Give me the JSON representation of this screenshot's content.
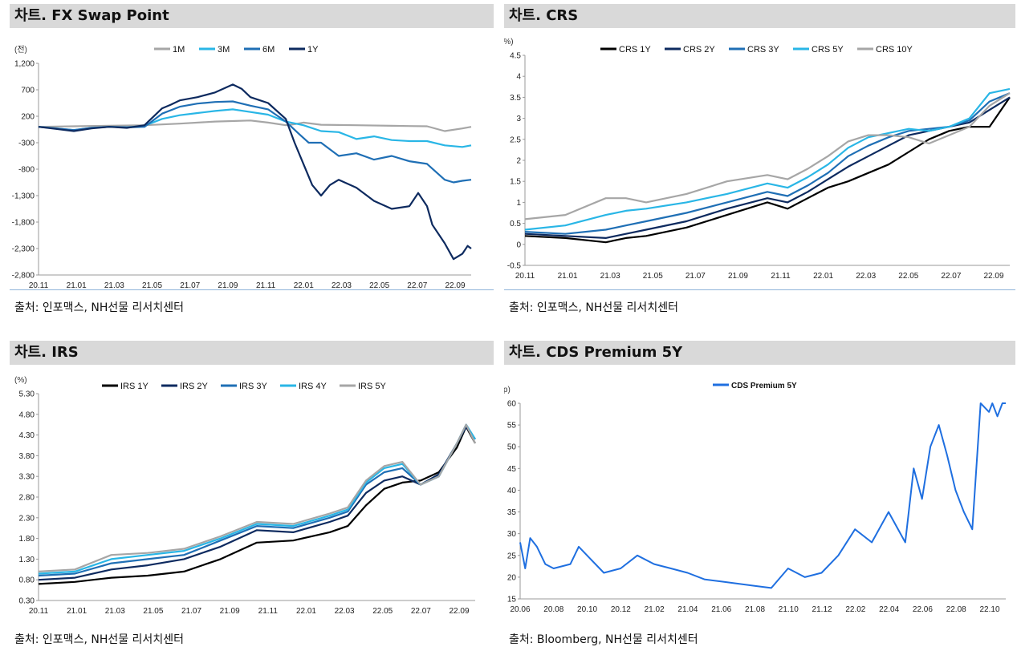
{
  "panels": [
    {
      "title": "차트. FX Swap Point",
      "source": "출처: 인포맥스, NH선물 리서치센터",
      "unit": "(전)",
      "chart_data": {
        "type": "line",
        "title": "",
        "ylim": [
          -2800,
          1200
        ],
        "yticks": [
          "1,200",
          "700",
          "200",
          "-300",
          "-800",
          "-1,300",
          "-1,800",
          "-2,300",
          "-2,800"
        ],
        "ytick_values": [
          1200,
          700,
          200,
          -300,
          -800,
          -1300,
          -1800,
          -2300,
          -2800
        ],
        "xticks": [
          "20.11",
          "21.01",
          "21.03",
          "21.05",
          "21.07",
          "21.09",
          "21.11",
          "22.01",
          "22.03",
          "22.05",
          "22.07",
          "22.09"
        ],
        "x_range": [
          0,
          24.5
        ],
        "legend_position": "top",
        "series": [
          {
            "name": "1M",
            "color": "#a6a6a6",
            "x": [
              0,
              2,
              4,
              6,
              8,
              10,
              12,
              13,
              14,
              14.5,
              15,
              16,
              18,
              20,
              22,
              23,
              24,
              24.5
            ],
            "y": [
              0,
              10,
              20,
              30,
              60,
              100,
              120,
              80,
              30,
              50,
              80,
              40,
              30,
              20,
              10,
              -80,
              -30,
              0
            ]
          },
          {
            "name": "3M",
            "color": "#29b6e6",
            "x": [
              0,
              1,
              2,
              3,
              4,
              5,
              6,
              7,
              8,
              9,
              10,
              11,
              12,
              13,
              14,
              15,
              16,
              17,
              18,
              19,
              20,
              21,
              22,
              23,
              24,
              24.5
            ],
            "y": [
              0,
              -30,
              -60,
              -20,
              0,
              -10,
              20,
              150,
              220,
              260,
              300,
              330,
              280,
              230,
              100,
              30,
              -80,
              -100,
              -230,
              -180,
              -250,
              -270,
              -270,
              -350,
              -380,
              -350
            ]
          },
          {
            "name": "6M",
            "color": "#1f6fb5",
            "x": [
              0,
              1,
              2,
              3,
              4,
              5,
              6,
              7,
              8,
              9,
              10,
              11,
              12,
              13,
              14,
              14.8,
              15.3,
              16,
              17,
              18,
              19,
              20,
              21,
              22,
              23,
              23.5,
              24,
              24.5
            ],
            "y": [
              0,
              -30,
              -60,
              -20,
              0,
              -10,
              0,
              250,
              380,
              440,
              470,
              480,
              400,
              330,
              100,
              -150,
              -300,
              -300,
              -550,
              -500,
              -620,
              -550,
              -650,
              -700,
              -1000,
              -1050,
              -1020,
              -1000
            ]
          },
          {
            "name": "1Y",
            "color": "#0d2a5f",
            "x": [
              0,
              1,
              2,
              3,
              4,
              5,
              6,
              7,
              7.5,
              8,
              9,
              10,
              11,
              11.5,
              12,
              13,
              14,
              14.5,
              15,
              15.5,
              16,
              16.5,
              17,
              18,
              19,
              20,
              21,
              21.5,
              22,
              22.3,
              23,
              23.5,
              24,
              24.3,
              24.5
            ],
            "y": [
              0,
              -40,
              -80,
              -30,
              0,
              -20,
              30,
              350,
              420,
              500,
              560,
              650,
              800,
              720,
              560,
              450,
              150,
              -300,
              -700,
              -1100,
              -1300,
              -1100,
              -1000,
              -1150,
              -1400,
              -1550,
              -1500,
              -1250,
              -1500,
              -1850,
              -2200,
              -2500,
              -2400,
              -2250,
              -2300
            ]
          }
        ]
      }
    },
    {
      "title": "차트. CRS",
      "source": "출처: 인포맥스, NH선물 리서치센터",
      "unit": "(%)",
      "chart_data": {
        "type": "line",
        "title": "",
        "ylim": [
          -0.5,
          4.5
        ],
        "yticks": [
          "4.5",
          "4",
          "3.5",
          "3",
          "2.5",
          "2",
          "1.5",
          "1",
          "0.5",
          "0",
          "-0.5"
        ],
        "ytick_values": [
          4.5,
          4,
          3.5,
          3,
          2.5,
          2,
          1.5,
          1,
          0.5,
          0,
          -0.5
        ],
        "xticks": [
          "20.11",
          "21.01",
          "21.03",
          "21.05",
          "21.07",
          "21.09",
          "21.11",
          "22.01",
          "22.03",
          "22.05",
          "22.07",
          "22.09"
        ],
        "x_range": [
          0,
          24
        ],
        "legend_position": "top",
        "series": [
          {
            "name": "CRS 1Y",
            "color": "#000000",
            "x": [
              0,
              2,
              4,
              5,
              6,
              8,
              10,
              12,
              13,
              14,
              15,
              16,
              17,
              18,
              19,
              20,
              21,
              22,
              23,
              24
            ],
            "y": [
              0.2,
              0.15,
              0.05,
              0.15,
              0.2,
              0.4,
              0.7,
              1.0,
              0.85,
              1.1,
              1.35,
              1.5,
              1.7,
              1.9,
              2.2,
              2.5,
              2.7,
              2.8,
              2.8,
              3.5
            ]
          },
          {
            "name": "CRS 2Y",
            "color": "#0d2a5f",
            "x": [
              0,
              2,
              4,
              5,
              6,
              8,
              10,
              12,
              13,
              14,
              15,
              16,
              17,
              18,
              19,
              20,
              21,
              22,
              23,
              24
            ],
            "y": [
              0.25,
              0.2,
              0.15,
              0.25,
              0.35,
              0.55,
              0.85,
              1.1,
              1.0,
              1.25,
              1.55,
              1.85,
              2.1,
              2.35,
              2.6,
              2.7,
              2.8,
              2.9,
              3.2,
              3.5
            ]
          },
          {
            "name": "CRS 3Y",
            "color": "#1f6fb5",
            "x": [
              0,
              2,
              4,
              5,
              6,
              8,
              10,
              12,
              13,
              14,
              15,
              16,
              17,
              18,
              19,
              20,
              21,
              22,
              23,
              24
            ],
            "y": [
              0.3,
              0.25,
              0.35,
              0.45,
              0.55,
              0.75,
              1.0,
              1.25,
              1.15,
              1.4,
              1.7,
              2.1,
              2.35,
              2.55,
              2.7,
              2.75,
              2.8,
              2.95,
              3.4,
              3.6
            ]
          },
          {
            "name": "CRS 5Y",
            "color": "#29b6e6",
            "x": [
              0,
              2,
              4,
              5,
              6,
              8,
              10,
              12,
              13,
              14,
              15,
              16,
              17,
              18,
              19,
              20,
              21,
              22,
              23,
              24
            ],
            "y": [
              0.35,
              0.45,
              0.7,
              0.8,
              0.85,
              1.0,
              1.2,
              1.45,
              1.35,
              1.6,
              1.9,
              2.3,
              2.55,
              2.65,
              2.75,
              2.7,
              2.8,
              3.0,
              3.6,
              3.7
            ]
          },
          {
            "name": "CRS 10Y",
            "color": "#a6a6a6",
            "x": [
              0,
              2,
              4,
              5,
              6,
              8,
              10,
              12,
              13,
              14,
              15,
              16,
              17,
              18,
              19,
              20,
              21,
              22,
              23,
              24
            ],
            "y": [
              0.6,
              0.7,
              1.1,
              1.1,
              1.0,
              1.2,
              1.5,
              1.65,
              1.55,
              1.8,
              2.1,
              2.45,
              2.6,
              2.6,
              2.55,
              2.4,
              2.6,
              2.8,
              3.3,
              3.6
            ]
          }
        ]
      }
    },
    {
      "title": "차트. IRS",
      "source": "출처: 인포맥스, NH선물 리서치센터",
      "unit": "(%)",
      "chart_data": {
        "type": "line",
        "title": "",
        "ylim": [
          0.3,
          5.3
        ],
        "yticks": [
          "5.30",
          "4.80",
          "4.30",
          "3.80",
          "3.30",
          "2.80",
          "2.30",
          "1.80",
          "1.30",
          "0.80",
          "0.30"
        ],
        "ytick_values": [
          5.3,
          4.8,
          4.3,
          3.8,
          3.3,
          2.8,
          2.3,
          1.8,
          1.3,
          0.8,
          0.3
        ],
        "xticks": [
          "20.11",
          "21.01",
          "21.03",
          "21.05",
          "21.07",
          "21.09",
          "21.11",
          "22.01",
          "22.03",
          "22.05",
          "22.07",
          "22.09"
        ],
        "x_range": [
          0,
          24
        ],
        "legend_position": "top",
        "series": [
          {
            "name": "IRS 1Y",
            "color": "#000000",
            "x": [
              0,
              2,
              4,
              6,
              8,
              10,
              12,
              14,
              16,
              17,
              18,
              19,
              20,
              21,
              22,
              23,
              23.5,
              24
            ],
            "y": [
              0.7,
              0.75,
              0.85,
              0.9,
              1.0,
              1.3,
              1.7,
              1.75,
              1.95,
              2.1,
              2.6,
              3.0,
              3.15,
              3.2,
              3.4,
              4.0,
              4.5,
              4.1
            ]
          },
          {
            "name": "IRS 2Y",
            "color": "#0d2a5f",
            "x": [
              0,
              2,
              4,
              6,
              8,
              10,
              12,
              14,
              16,
              17,
              18,
              19,
              20,
              21,
              22,
              23,
              23.5,
              24
            ],
            "y": [
              0.8,
              0.85,
              1.05,
              1.15,
              1.3,
              1.6,
              2.0,
              1.95,
              2.2,
              2.35,
              2.9,
              3.2,
              3.3,
              3.1,
              3.35,
              4.1,
              4.5,
              4.2
            ]
          },
          {
            "name": "IRS 3Y",
            "color": "#1f6fb5",
            "x": [
              0,
              2,
              4,
              6,
              8,
              10,
              12,
              14,
              16,
              17,
              18,
              19,
              20,
              21,
              22,
              23,
              23.5,
              24
            ],
            "y": [
              0.9,
              0.95,
              1.2,
              1.3,
              1.4,
              1.75,
              2.1,
              2.05,
              2.3,
              2.45,
              3.1,
              3.4,
              3.5,
              3.1,
              3.3,
              4.1,
              4.55,
              4.2
            ]
          },
          {
            "name": "IRS 4Y",
            "color": "#29b6e6",
            "x": [
              0,
              2,
              4,
              6,
              8,
              10,
              12,
              14,
              16,
              17,
              18,
              19,
              20,
              21,
              22,
              23,
              23.5,
              24
            ],
            "y": [
              0.95,
              1.0,
              1.3,
              1.4,
              1.5,
              1.8,
              2.15,
              2.1,
              2.35,
              2.5,
              3.15,
              3.5,
              3.6,
              3.1,
              3.3,
              4.1,
              4.55,
              4.2
            ]
          },
          {
            "name": "IRS 5Y",
            "color": "#a6a6a6",
            "x": [
              0,
              2,
              4,
              6,
              8,
              10,
              12,
              14,
              16,
              17,
              18,
              19,
              20,
              21,
              22,
              23,
              23.5,
              24
            ],
            "y": [
              1.0,
              1.05,
              1.4,
              1.45,
              1.55,
              1.85,
              2.2,
              2.15,
              2.4,
              2.55,
              3.2,
              3.55,
              3.65,
              3.1,
              3.3,
              4.1,
              4.55,
              4.1
            ]
          }
        ]
      }
    },
    {
      "title": "차트. CDS Premium 5Y",
      "source": "출처: Bloomberg, NH선물 리서치센터",
      "unit": "(bp)",
      "chart_data": {
        "type": "line",
        "title": "",
        "ylim": [
          15,
          60
        ],
        "yticks": [
          "60",
          "55",
          "50",
          "45",
          "40",
          "35",
          "30",
          "25",
          "20",
          "15"
        ],
        "ytick_values": [
          60,
          55,
          50,
          45,
          40,
          35,
          30,
          25,
          20,
          15
        ],
        "xticks": [
          "20.06",
          "20.08",
          "20.10",
          "20.12",
          "21.02",
          "21.04",
          "21.06",
          "21.08",
          "21.10",
          "21.12",
          "22.02",
          "22.04",
          "22.06",
          "22.08",
          "22.10"
        ],
        "x_range": [
          0,
          29
        ],
        "legend_position": "top",
        "series": [
          {
            "name": "CDS Premium 5Y",
            "color": "#1f6fe0",
            "x": [
              0,
              0.3,
              0.6,
              1,
              1.5,
              2,
              3,
              3.5,
              4,
              5,
              6,
              7,
              8,
              9,
              10,
              11,
              12,
              13,
              14,
              15,
              16,
              17,
              18,
              19,
              20,
              21,
              22,
              23,
              23.5,
              24,
              24.5,
              25,
              25.5,
              26,
              26.5,
              27,
              27.5,
              28,
              28.2,
              28.5,
              28.8,
              29
            ],
            "y": [
              28,
              22,
              29,
              27,
              23,
              22,
              23,
              27,
              25,
              21,
              22,
              25,
              23,
              22,
              21,
              19.5,
              19,
              18.5,
              18,
              17.5,
              22,
              20,
              21,
              25,
              31,
              28,
              35,
              28,
              45,
              38,
              50,
              55,
              48,
              40,
              35,
              31,
              60,
              58,
              60,
              57,
              60,
              60
            ]
          }
        ]
      }
    }
  ]
}
